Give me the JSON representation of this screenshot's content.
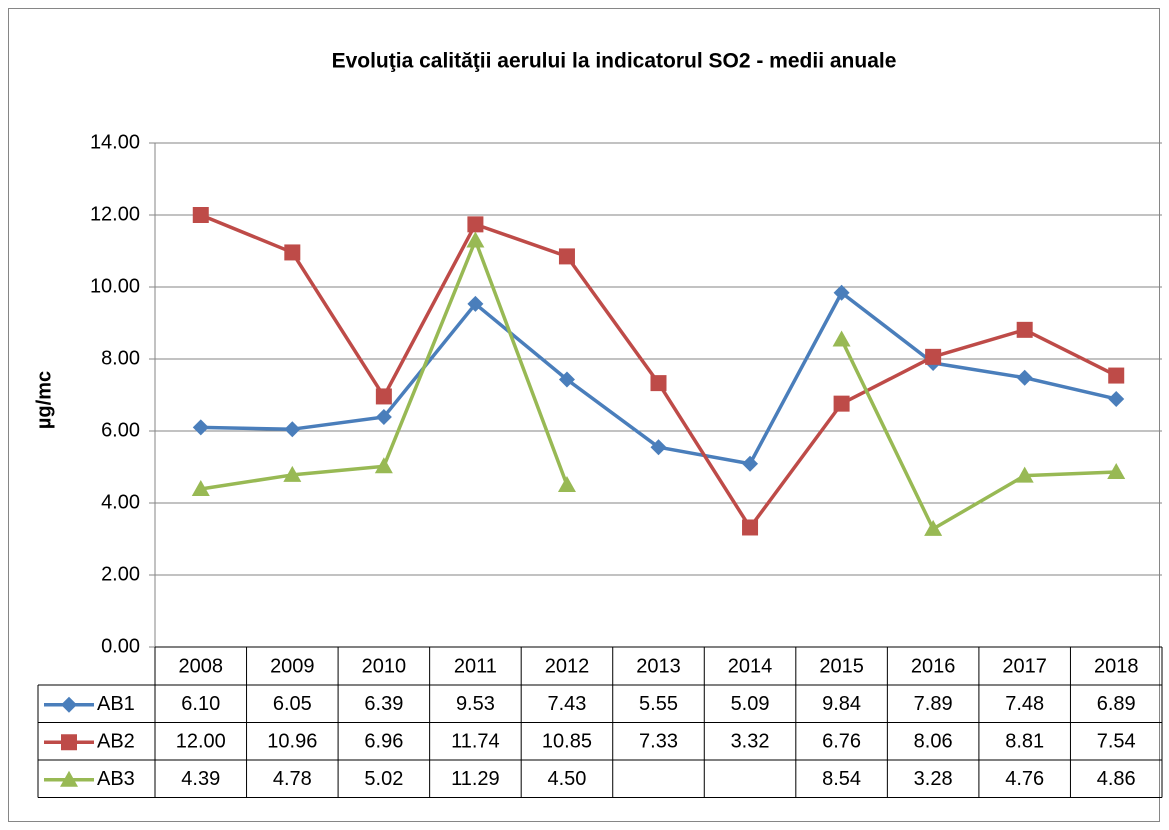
{
  "chart_data": {
    "type": "line",
    "title": "Evoluţia calităţii aerului la indicatorul SO2 - medii anuale",
    "y_label": "µg/mc",
    "categories": [
      "2008",
      "2009",
      "2010",
      "2011",
      "2012",
      "2013",
      "2014",
      "2015",
      "2016",
      "2017",
      "2018"
    ],
    "ylim": [
      0,
      14
    ],
    "yticks": [
      {
        "value": 0,
        "label": "0.00"
      },
      {
        "value": 2,
        "label": "2.00"
      },
      {
        "value": 4,
        "label": "4.00"
      },
      {
        "value": 6,
        "label": "6.00"
      },
      {
        "value": 8,
        "label": "8.00"
      },
      {
        "value": 10,
        "label": "10.00"
      },
      {
        "value": 12,
        "label": "12.00"
      },
      {
        "value": 14,
        "label": "14.00"
      }
    ],
    "grid": true,
    "series": [
      {
        "name": "AB1",
        "color": "#4a7ebb",
        "marker": "diamond",
        "values": [
          6.1,
          6.05,
          6.39,
          9.53,
          7.43,
          5.55,
          5.09,
          9.84,
          7.89,
          7.48,
          6.89
        ],
        "value_labels": [
          "6.10",
          "6.05",
          "6.39",
          "9.53",
          "7.43",
          "5.55",
          "5.09",
          "9.84",
          "7.89",
          "7.48",
          "6.89"
        ]
      },
      {
        "name": "AB2",
        "color": "#be4b48",
        "marker": "square",
        "values": [
          12,
          10.96,
          6.96,
          11.74,
          10.85,
          7.33,
          3.32,
          6.76,
          8.06,
          8.81,
          7.54
        ],
        "value_labels": [
          "12.00",
          "10.96",
          "6.96",
          "11.74",
          "10.85",
          "7.33",
          "3.32",
          "6.76",
          "8.06",
          "8.81",
          "7.54"
        ]
      },
      {
        "name": "AB3",
        "color": "#98b954",
        "marker": "triangle",
        "values": [
          4.39,
          4.78,
          5.02,
          11.29,
          4.5,
          null,
          null,
          8.54,
          3.28,
          4.76,
          4.86
        ],
        "value_labels": [
          "4.39",
          "4.78",
          "5.02",
          "11.29",
          "4.50",
          null,
          null,
          "8.54",
          "3.28",
          "4.76",
          "4.86"
        ]
      }
    ]
  }
}
